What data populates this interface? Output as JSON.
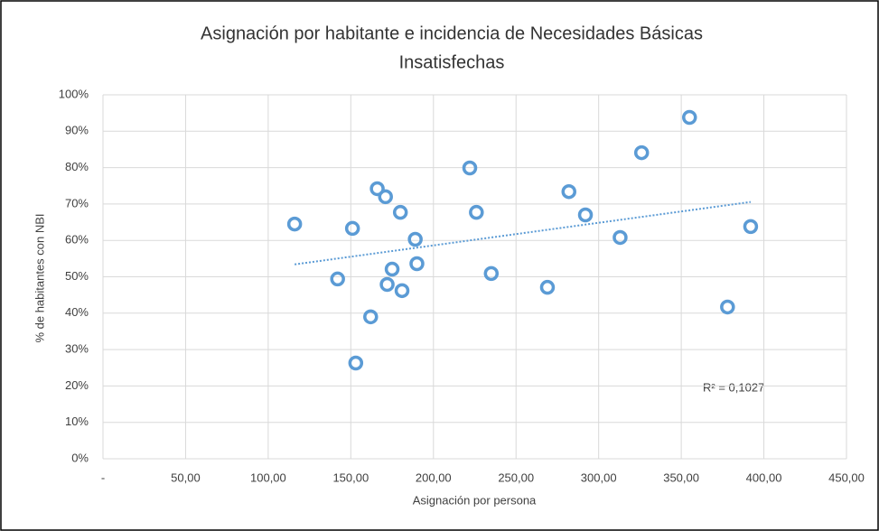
{
  "chart_data": {
    "type": "scatter",
    "title": [
      "Asignación por habitante e incidencia de Necesidades Básicas",
      "Insatisfechas"
    ],
    "x_label": "Asignación por persona",
    "y_label": "% de habitantes con NBI",
    "annotation": "R² = 0,1027",
    "color": "#5b9bd5",
    "trendline": true,
    "grid": true,
    "x": [
      116,
      151,
      142,
      153,
      162,
      166,
      171,
      172,
      175,
      180,
      181,
      189,
      190,
      222,
      226,
      235,
      269,
      282,
      292,
      313,
      326,
      355,
      378,
      392
    ],
    "y": [
      64.5,
      63.3,
      49.4,
      26.3,
      39,
      74.2,
      72,
      47.9,
      52.1,
      67.7,
      46.2,
      60.3,
      53.6,
      79.9,
      67.7,
      50.9,
      47.1,
      73.4,
      67,
      60.8,
      84.1,
      93.8,
      41.7,
      63.8
    ],
    "xlim": [
      0,
      450
    ],
    "xticks": [
      {
        "value": 0,
        "label": "-"
      },
      {
        "value": 50,
        "label": "50,00"
      },
      {
        "value": 100,
        "label": "100,00"
      },
      {
        "value": 150,
        "label": "150,00"
      },
      {
        "value": 200,
        "label": "200,00"
      },
      {
        "value": 250,
        "label": "250,00"
      },
      {
        "value": 300,
        "label": "300,00"
      },
      {
        "value": 350,
        "label": "350,00"
      },
      {
        "value": 400,
        "label": "400,00"
      },
      {
        "value": 450,
        "label": "450,00"
      }
    ],
    "ylim": [
      0,
      100
    ],
    "yticks": [
      {
        "value": 0,
        "label": "0%"
      },
      {
        "value": 10,
        "label": "10%"
      },
      {
        "value": 20,
        "label": "20%"
      },
      {
        "value": 30,
        "label": "30%"
      },
      {
        "value": 40,
        "label": "40%"
      },
      {
        "value": 50,
        "label": "50%"
      },
      {
        "value": 60,
        "label": "60%"
      },
      {
        "value": 70,
        "label": "70%"
      },
      {
        "value": 80,
        "label": "80%"
      },
      {
        "value": 90,
        "label": "90%"
      },
      {
        "value": 100,
        "label": "100%"
      }
    ]
  }
}
